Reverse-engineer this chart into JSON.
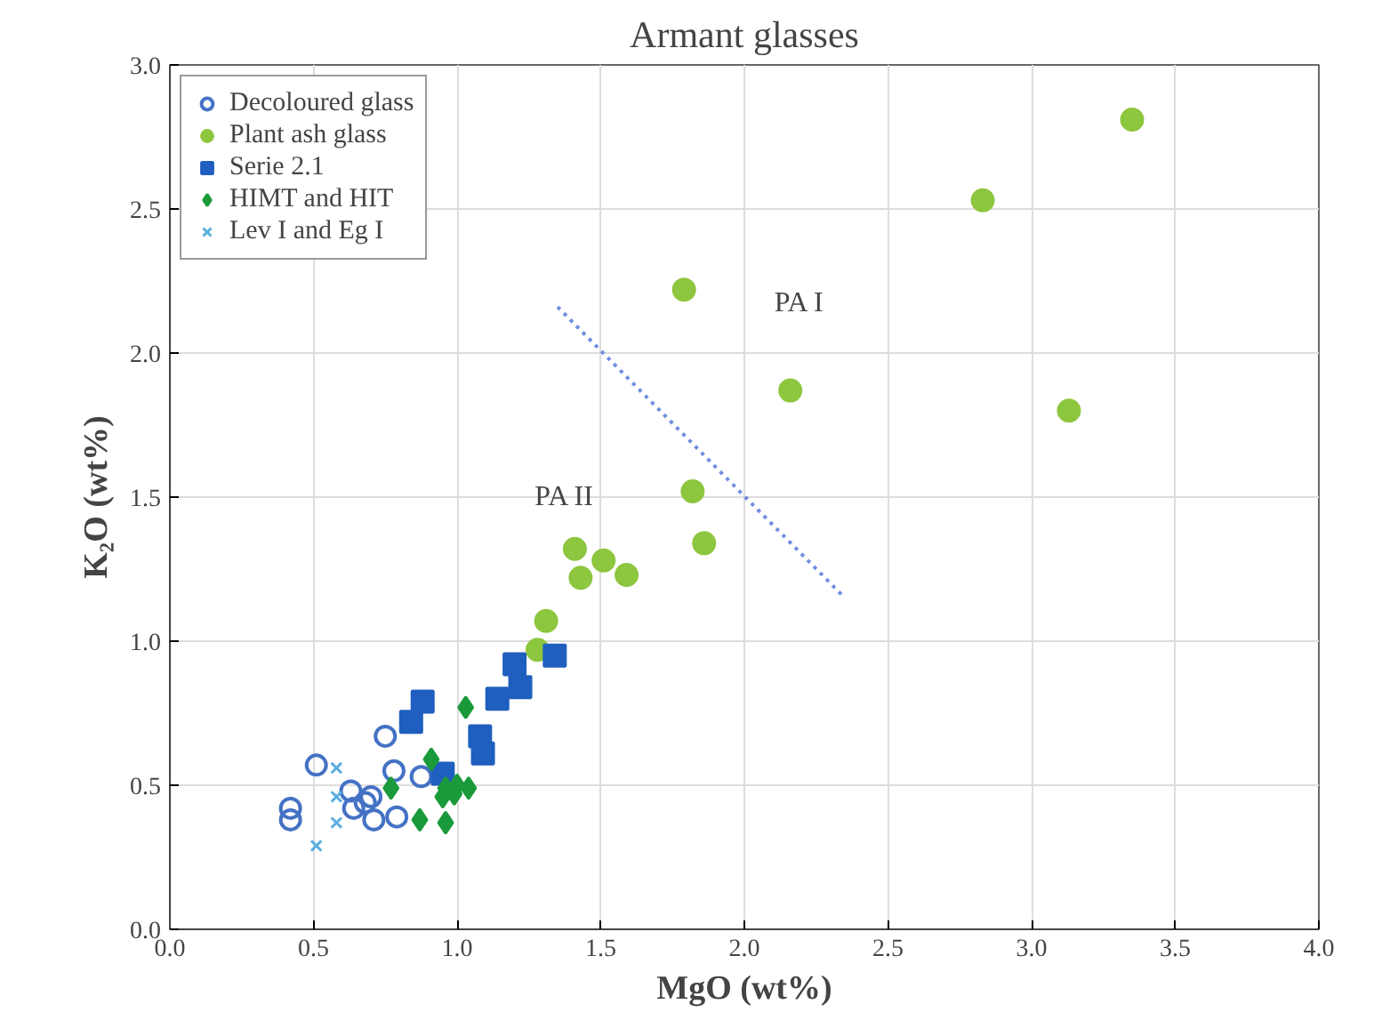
{
  "chart_data": {
    "type": "scatter",
    "title": "Armant glasses",
    "xlabel": "MgO (wt%)",
    "ylabel": "K₂O (wt%)",
    "xlim": [
      0,
      4
    ],
    "ylim": [
      0,
      3
    ],
    "xticks": [
      {
        "value": 0,
        "label": "0.0"
      },
      0.5,
      {
        "value": 1,
        "label": "1.0"
      },
      1.5,
      {
        "value": 2,
        "label": "2.0"
      },
      2.5,
      {
        "value": 3,
        "label": "3.0"
      },
      3.5,
      {
        "value": 4,
        "label": "4.0"
      }
    ],
    "yticks": [
      {
        "value": 0,
        "label": "0.0"
      },
      0.5,
      {
        "value": 1,
        "label": "1.0"
      },
      1.5,
      {
        "value": 2,
        "label": "2.0"
      },
      2.5,
      {
        "value": 3,
        "label": "3.0"
      }
    ],
    "grid": true,
    "legend": "top left",
    "series": [
      {
        "name": "Decoloured glass",
        "color": "#4472c4",
        "marker": "circle",
        "x": [
          0.51,
          0.75,
          0.78,
          0.875,
          0.42,
          0.42,
          0.63,
          0.64,
          0.7,
          0.71,
          0.79,
          0.68
        ],
        "values": [
          0.57,
          0.67,
          0.55,
          0.53,
          0.42,
          0.38,
          0.48,
          0.42,
          0.46,
          0.38,
          0.39,
          0.44
        ]
      },
      {
        "name": "Plant ash glass",
        "color": "#8dc63f",
        "marker": "circle",
        "x": [
          1.79,
          2.83,
          3.35,
          3.13,
          2.16,
          1.82,
          1.86,
          1.41,
          1.51,
          1.43,
          1.59,
          1.31,
          1.28
        ],
        "values": [
          2.22,
          2.53,
          2.81,
          1.8,
          1.87,
          1.52,
          1.34,
          1.32,
          1.28,
          1.22,
          1.23,
          1.07,
          0.97
        ]
      },
      {
        "name": "Serie 2.1",
        "color": "#1f5fbf",
        "marker": "square",
        "x": [
          0.88,
          0.84,
          1.2,
          1.22,
          1.14,
          1.34,
          1.08,
          1.09,
          0.95
        ],
        "values": [
          0.79,
          0.72,
          0.92,
          0.84,
          0.8,
          0.95,
          0.67,
          0.61,
          0.54
        ]
      },
      {
        "name": "HIMT and HIT",
        "color": "#1a9a3a",
        "marker": "diamond",
        "x": [
          1.03,
          0.91,
          0.77,
          0.96,
          0.95,
          1.04,
          0.99,
          0.87,
          0.96,
          1.0
        ],
        "values": [
          0.77,
          0.59,
          0.49,
          0.49,
          0.46,
          0.49,
          0.47,
          0.38,
          0.37,
          0.5
        ]
      },
      {
        "name": "Lev I and Eg I",
        "color": "#5aaee0",
        "marker": "cross",
        "x": [
          0.58,
          0.58,
          0.58,
          0.51
        ],
        "values": [
          0.56,
          0.46,
          0.37,
          0.29
        ]
      },
      {
        "type": "line",
        "color": "#6f8fdf",
        "line_style": "dotted",
        "marker": "none",
        "x": [
          1.35,
          2.35
        ],
        "values": [
          2.16,
          1.15
        ]
      }
    ],
    "annotations": [
      "PA I",
      "PA II"
    ]
  }
}
